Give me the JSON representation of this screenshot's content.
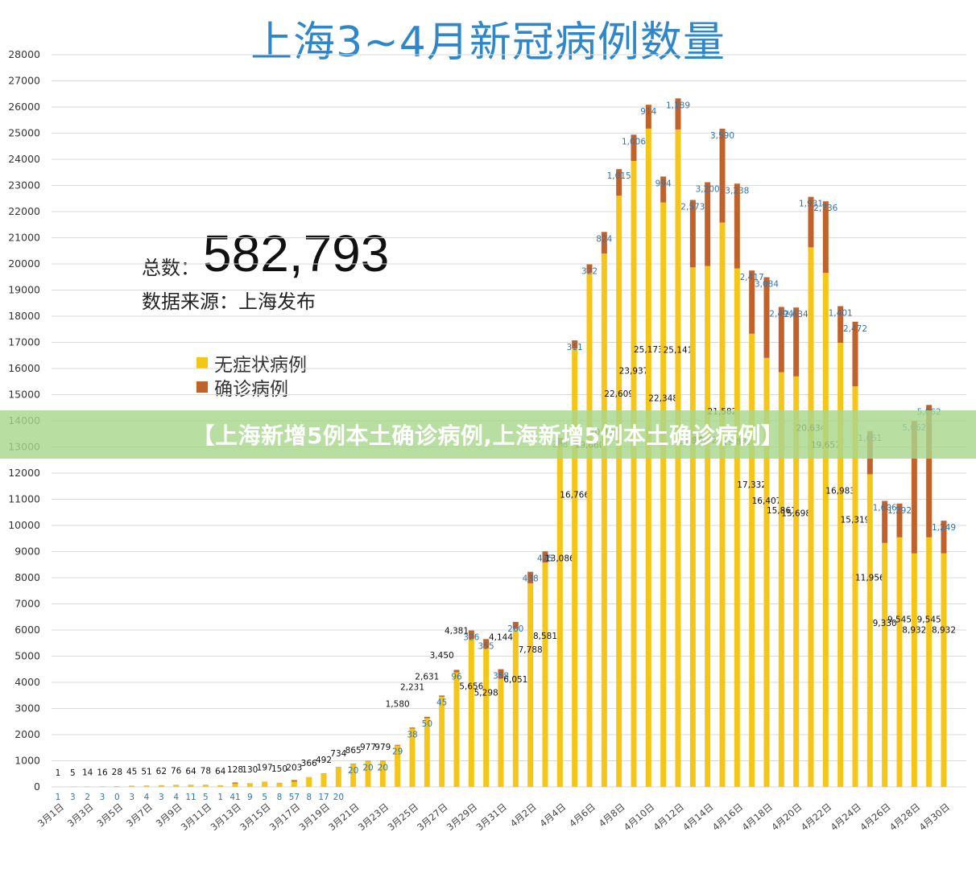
{
  "title": "上海3~4月新冠病例数量",
  "summary": {
    "total_label": "总数：",
    "total_value": "582,793",
    "source": "数据来源：上海发布"
  },
  "banner": "【上海新增5例本土确诊病例,上海新增5例本土确诊病例】",
  "colors": {
    "asymptomatic": "#f5c518",
    "confirmed": "#c0622a",
    "title": "#2f86c9",
    "confirmed_label": "#2e75b6"
  },
  "chart_data": {
    "type": "bar",
    "stacked": true,
    "ylim": [
      0,
      28000
    ],
    "yticks": [
      0,
      1000,
      2000,
      3000,
      4000,
      5000,
      6000,
      7000,
      8000,
      9000,
      10000,
      11000,
      12000,
      13000,
      14000,
      15000,
      16000,
      17000,
      18000,
      19000,
      20000,
      21000,
      22000,
      23000,
      24000,
      25000,
      26000,
      27000,
      28000
    ],
    "grid": true,
    "legend_position": "left-middle",
    "categories": [
      "3月1日",
      "3月2日",
      "3月3日",
      "3月4日",
      "3月5日",
      "3月6日",
      "3月7日",
      "3月8日",
      "3月9日",
      "3月10日",
      "3月11日",
      "3月12日",
      "3月13日",
      "3月14日",
      "3月15日",
      "3月16日",
      "3月17日",
      "3月18日",
      "3月19日",
      "3月20日",
      "3月21日",
      "3月22日",
      "3月23日",
      "3月24日",
      "3月25日",
      "3月26日",
      "3月27日",
      "3月28日",
      "3月29日",
      "3月30日",
      "3月31日",
      "4月1日",
      "4月2日",
      "4月3日",
      "4月4日",
      "4月5日",
      "4月6日",
      "4月7日",
      "4月8日",
      "4月9日",
      "4月10日",
      "4月11日",
      "4月12日",
      "4月13日",
      "4月14日",
      "4月15日",
      "4月16日",
      "4月17日",
      "4月18日",
      "4月19日",
      "4月20日",
      "4月21日",
      "4月22日",
      "4月23日",
      "4月24日",
      "4月25日",
      "4月26日",
      "4月27日",
      "4月28日",
      "4月29日",
      "4月30日"
    ],
    "xtick_labels": [
      "3月1日",
      "3月3日",
      "3月5日",
      "3月7日",
      "3月9日",
      "3月11日",
      "3月13日",
      "3月15日",
      "3月17日",
      "3月19日",
      "3月21日",
      "3月23日",
      "3月25日",
      "3月27日",
      "3月29日",
      "3月31日",
      "4月2日",
      "4月4日",
      "4月6日",
      "4月8日",
      "4月10日",
      "4月12日",
      "4月14日",
      "4月16日",
      "4月18日",
      "4月20日",
      "4月22日",
      "4月24日",
      "4月26日",
      "4月28日",
      "4月30日"
    ],
    "series": [
      {
        "name": "无症状病例",
        "values": [
          1,
          5,
          14,
          16,
          28,
          45,
          51,
          62,
          76,
          64,
          78,
          64,
          128,
          130,
          197,
          150,
          203,
          366,
          492,
          734,
          865,
          977,
          979,
          1580,
          2231,
          2631,
          3450,
          4381,
          5656,
          5298,
          4144,
          6051,
          7788,
          8581,
          13086,
          16766,
          19660,
          20398,
          22609,
          23937,
          25173,
          22348,
          25141,
          19872,
          19923,
          21582,
          19831,
          17332,
          16407,
          15861,
          15698,
          20634,
          19657,
          16983,
          15319,
          11956,
          9330,
          9545,
          8932,
          9545,
          8932
        ]
      },
      {
        "name": "确诊病例",
        "values": [
          1,
          3,
          2,
          3,
          0,
          3,
          4,
          3,
          4,
          11,
          5,
          1,
          41,
          9,
          5,
          8,
          57,
          8,
          17,
          20,
          20,
          20,
          20,
          29,
          38,
          50,
          45,
          96,
          326,
          355,
          358,
          260,
          438,
          425,
          268,
          311,
          322,
          824,
          1015,
          1006,
          914,
          994,
          1189,
          2573,
          3200,
          3590,
          3238,
          2417,
          3084,
          2494,
          2634,
          1931,
          2736,
          1401,
          2472,
          1651,
          1606,
          1292,
          5062,
          5062,
          1249
        ]
      }
    ]
  }
}
